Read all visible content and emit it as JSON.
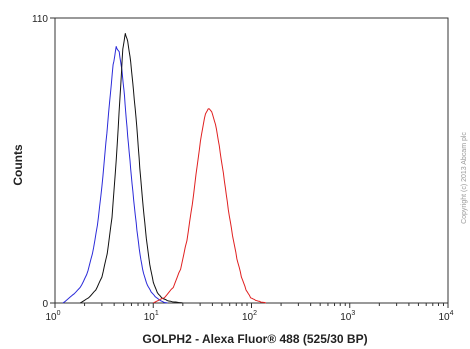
{
  "chart_data": {
    "type": "line",
    "xlabel": "GOLPH2 - Alexa Fluor® 488 (525/30 BP)",
    "ylabel": "Counts",
    "x_scale": "log",
    "xlim": [
      1,
      10000
    ],
    "ylim": [
      0,
      110
    ],
    "x_ticks": [
      {
        "value": 1,
        "base": "10",
        "exp": "0"
      },
      {
        "value": 10,
        "base": "10",
        "exp": "1"
      },
      {
        "value": 100,
        "base": "10",
        "exp": "2"
      },
      {
        "value": 1000,
        "base": "10",
        "exp": "3"
      },
      {
        "value": 10000,
        "base": "10",
        "exp": "4"
      }
    ],
    "y_ticks": [
      {
        "value": 0,
        "label": "0"
      },
      {
        "value": 110,
        "label": "110"
      }
    ],
    "grid": false,
    "legend": "none",
    "copyright": "Copyright (c) 2013 Abcam plc",
    "series": [
      {
        "color": "#2b2bd9",
        "x": [
          1.2,
          1.5,
          1.8,
          2.1,
          2.4,
          2.7,
          3.0,
          3.3,
          3.6,
          3.9,
          4.2,
          4.5,
          4.8,
          5.1,
          5.4,
          5.8,
          6.2,
          6.7,
          7.2,
          7.8,
          8.5,
          9.3,
          10.2,
          11.3,
          12.5,
          14.0
        ],
        "y": [
          0,
          3,
          6,
          11,
          19,
          30,
          45,
          62,
          78,
          92,
          99,
          97,
          90,
          80,
          68,
          55,
          43,
          31,
          21,
          13,
          8,
          5,
          3,
          1.5,
          0.5,
          0
        ]
      },
      {
        "color": "#111111",
        "x": [
          1.8,
          2.2,
          2.6,
          3.0,
          3.4,
          3.8,
          4.2,
          4.6,
          4.9,
          5.2,
          5.5,
          5.9,
          6.3,
          6.8,
          7.3,
          7.9,
          8.5,
          9.2,
          10.0,
          11.0,
          12.2,
          13.8,
          15.5,
          17.5,
          20.0
        ],
        "y": [
          0,
          2,
          5,
          10,
          19,
          33,
          55,
          80,
          98,
          104,
          101,
          93,
          82,
          68,
          52,
          37,
          25,
          15,
          8,
          4,
          2,
          1,
          0.5,
          0.3,
          0
        ]
      },
      {
        "color": "#e02020",
        "x": [
          10,
          13,
          16,
          19,
          22,
          25,
          28,
          31,
          34,
          37,
          40,
          44,
          48,
          53,
          58,
          64,
          71,
          79,
          88,
          98,
          110,
          125,
          140
        ],
        "y": [
          0,
          2,
          6,
          13,
          24,
          38,
          53,
          65,
          73,
          75,
          73,
          67,
          58,
          47,
          36,
          26,
          17,
          10,
          5,
          2,
          1,
          0.3,
          0
        ]
      }
    ]
  }
}
